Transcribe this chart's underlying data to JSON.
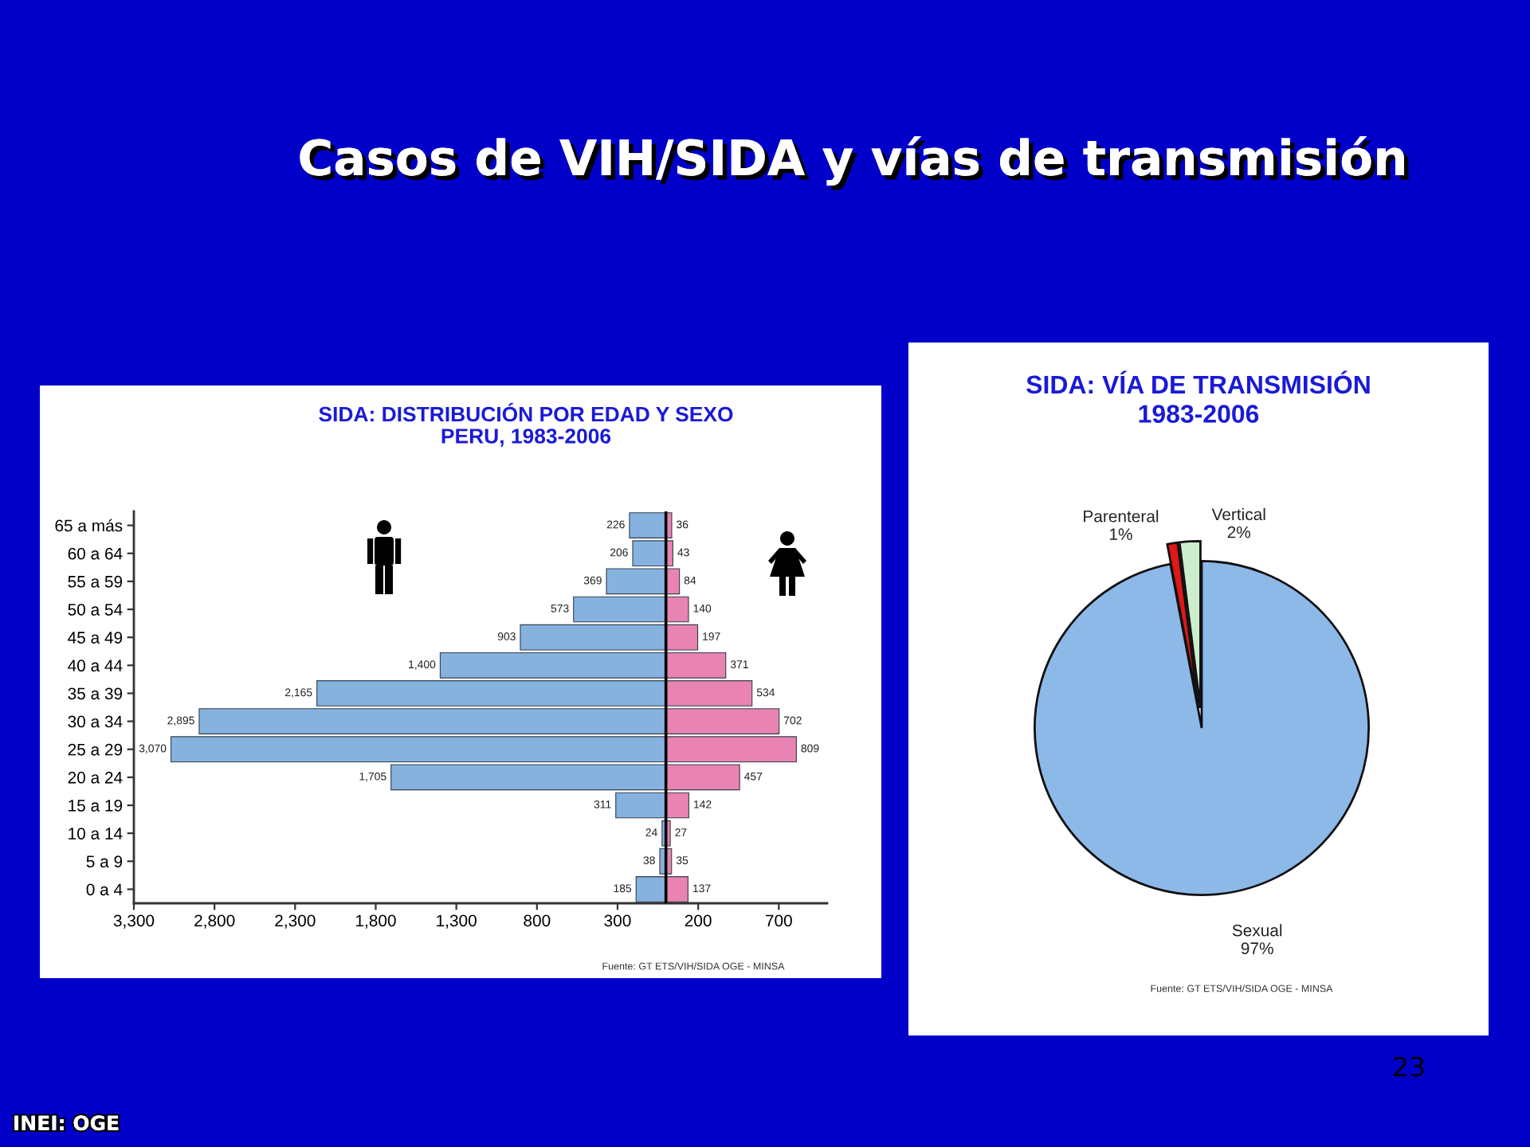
{
  "chart_data": [
    {
      "type": "other",
      "title": "Casos de VIH/SIDA y vías de transmisión",
      "annotations": [
        "23",
        "INEI: OGE"
      ]
    },
    {
      "type": "bar",
      "orientation": "horizontal",
      "title": "SIDA: DISTRIBUCIÓN POR EDAD Y SEXO\nPERU, 1983-2006",
      "categories": [
        "65 a más",
        "60 a 64",
        "55 a 59",
        "50 a 54",
        "45 a 49",
        "40 a 44",
        "35 a 39",
        "30 a 34",
        "25 a 29",
        "20 a 24",
        "15 a 19",
        "10 a 14",
        "5 a 9",
        "0 a 4"
      ],
      "series": [
        {
          "color": "#86b2df",
          "values": [
            226,
            206,
            369,
            573,
            903,
            1400,
            2165,
            2895,
            3070,
            1705,
            311,
            24,
            38,
            185
          ],
          "base": [
            -226,
            -206,
            -369,
            -573,
            -903,
            -1400,
            -2165,
            -2895,
            -3070,
            -1705,
            -311,
            -24,
            -38,
            -185
          ],
          "value_labels": [
            "226",
            "206",
            "369",
            "573",
            "903",
            "1,400",
            "2,165",
            "2,895",
            "3,070",
            "1,705",
            "311",
            "24",
            "38",
            "185"
          ]
        },
        {
          "color": "#e883b2",
          "values": [
            36,
            43,
            84,
            140,
            197,
            371,
            534,
            702,
            809,
            457,
            142,
            27,
            35,
            137
          ],
          "value_labels": [
            "36",
            "43",
            "84",
            "140",
            "197",
            "371",
            "534",
            "702",
            "809",
            "457",
            "142",
            "27",
            "35",
            "137"
          ]
        }
      ],
      "xlim": [
        -3300,
        1000
      ],
      "xticks": [
        {
          "value": -3300,
          "label": "3,300"
        },
        {
          "value": -2800,
          "label": "2,800"
        },
        {
          "value": -2300,
          "label": "2,300"
        },
        {
          "value": -1800,
          "label": "1,800"
        },
        {
          "value": -1300,
          "label": "1,300"
        },
        {
          "value": -800,
          "label": "800"
        },
        {
          "value": -300,
          "label": "300"
        },
        200,
        700
      ],
      "ref_lines": [
        {
          "axis": "x",
          "value": 0,
          "color": "#000000"
        }
      ],
      "annotations": [
        "Fuente: GT ETS/VIH/SIDA OGE - MINSA"
      ]
    },
    {
      "type": "pie",
      "title": "SIDA: VÍA DE TRANSMISIÓN\n1983-2006",
      "categories": [
        "Sexual",
        "Parenteral",
        "Vertical"
      ],
      "values": [
        97,
        1,
        2
      ],
      "colors": [
        "#8db9e8",
        "#e01818",
        "#cdeecd"
      ],
      "value_labels": [
        "97%",
        "1%",
        "2%"
      ],
      "annotations": [
        "Fuente: GT ETS/VIH/SIDA OGE - MINSA"
      ]
    }
  ]
}
